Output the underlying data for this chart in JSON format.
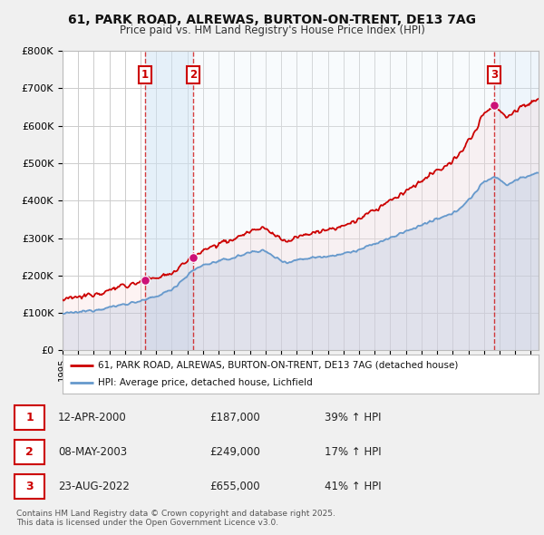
{
  "title_line1": "61, PARK ROAD, ALREWAS, BURTON-ON-TRENT, DE13 7AG",
  "title_line2": "Price paid vs. HM Land Registry's House Price Index (HPI)",
  "background_color": "#f0f0f0",
  "plot_bg_color": "#ffffff",
  "grid_color": "#cccccc",
  "hpi_line_color": "#6699cc",
  "hpi_fill_color": "#aac8e8",
  "price_line_color": "#cc0000",
  "price_fill_color": "#f5c0c0",
  "sale_marker_fill": "#cc1177",
  "sale_dates": [
    2000.28,
    2003.35,
    2022.64
  ],
  "sale_prices": [
    187000,
    249000,
    655000
  ],
  "legend_label_price": "61, PARK ROAD, ALREWAS, BURTON-ON-TRENT, DE13 7AG (detached house)",
  "legend_label_hpi": "HPI: Average price, detached house, Lichfield",
  "table_entries": [
    {
      "num": 1,
      "date": "12-APR-2000",
      "price": "£187,000",
      "change": "39% ↑ HPI"
    },
    {
      "num": 2,
      "date": "08-MAY-2003",
      "price": "£249,000",
      "change": "17% ↑ HPI"
    },
    {
      "num": 3,
      "date": "23-AUG-2022",
      "price": "£655,000",
      "change": "41% ↑ HPI"
    }
  ],
  "footer": "Contains HM Land Registry data © Crown copyright and database right 2025.\nThis data is licensed under the Open Government Licence v3.0.",
  "xmin": 1995,
  "xmax": 2025.5,
  "ymin": 0,
  "ymax": 800000,
  "yticks": [
    0,
    100000,
    200000,
    300000,
    400000,
    500000,
    600000,
    700000,
    800000
  ],
  "ytick_labels": [
    "£0",
    "£100K",
    "£200K",
    "£300K",
    "£400K",
    "£500K",
    "£600K",
    "£700K",
    "£800K"
  ]
}
